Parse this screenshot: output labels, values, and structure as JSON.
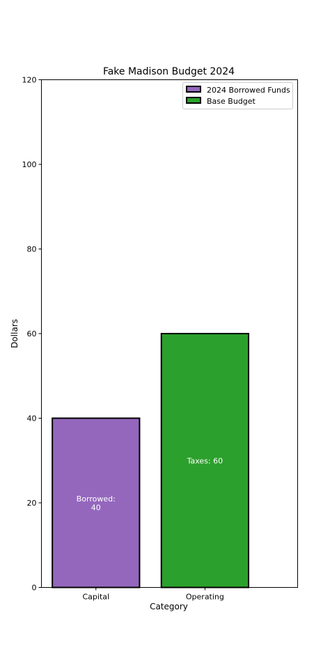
{
  "chart_data": {
    "type": "bar",
    "title": "Fake Madison Budget 2024",
    "xlabel": "Category",
    "ylabel": "Dollars",
    "categories": [
      "Capital",
      "Operating"
    ],
    "ylim": [
      0,
      120
    ],
    "yticks": [
      0,
      20,
      40,
      60,
      80,
      100,
      120
    ],
    "grid": false,
    "legend_position": "top-right",
    "bars": [
      {
        "category": "Capital",
        "value": 40,
        "series": "2024 Borrowed Funds",
        "color": "#9467bd",
        "label_lines": [
          "Borrowed:",
          "40"
        ]
      },
      {
        "category": "Operating",
        "value": 60,
        "series": "Base Budget",
        "color": "#2ca02c",
        "label_lines": [
          "Taxes: 60"
        ]
      }
    ],
    "series": [
      {
        "name": "2024 Borrowed Funds",
        "color": "#9467bd",
        "values": [
          40,
          null
        ]
      },
      {
        "name": "Base Budget",
        "color": "#2ca02c",
        "values": [
          null,
          60
        ]
      }
    ]
  }
}
